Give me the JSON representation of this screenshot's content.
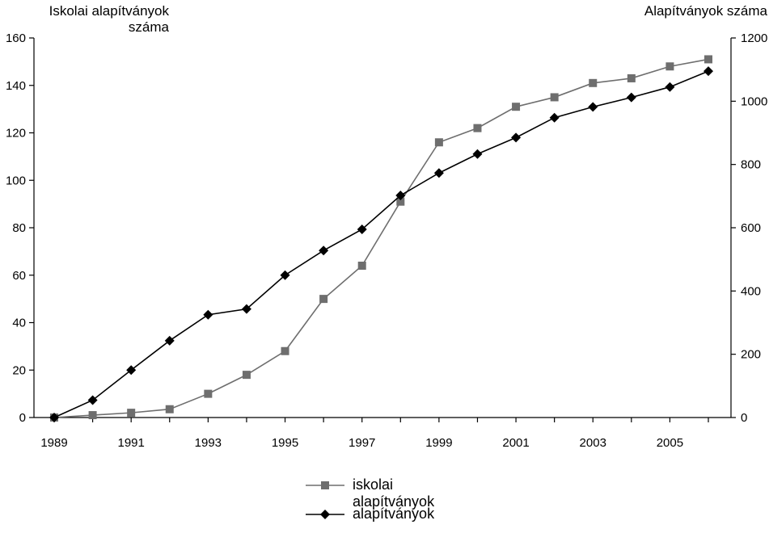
{
  "chart_data": {
    "type": "line",
    "ylabel_left": [
      "Iskolai alapítványok",
      "száma"
    ],
    "ylabel_right": "Alapítványok száma",
    "x": [
      1989,
      1990,
      1991,
      1992,
      1993,
      1994,
      1995,
      1996,
      1997,
      1998,
      1999,
      2000,
      2001,
      2002,
      2003,
      2004,
      2005,
      2006
    ],
    "xticks": [
      "1989",
      "1991",
      "1993",
      "1995",
      "1997",
      "1999",
      "2001",
      "2003",
      "2005"
    ],
    "ylim_left": [
      0,
      160
    ],
    "ylim_right": [
      0,
      1200
    ],
    "yticks_left": [
      "0",
      "20",
      "40",
      "60",
      "80",
      "100",
      "120",
      "140",
      "160"
    ],
    "yticks_right": [
      "0",
      "200",
      "400",
      "600",
      "800",
      "1000",
      "1200"
    ],
    "series": [
      {
        "name": "iskolai alapítványok",
        "axis": "left",
        "marker": "square",
        "color": "#6e6e6e",
        "values": [
          0,
          1,
          2,
          3.5,
          10,
          18,
          28,
          50,
          64,
          91,
          116,
          122,
          131,
          135,
          141,
          143,
          148,
          151
        ]
      },
      {
        "name": "alapítványok",
        "axis": "right",
        "marker": "diamond",
        "color": "#000000",
        "values": [
          0,
          55,
          150,
          243,
          325,
          343,
          450,
          528,
          595,
          702,
          773,
          833,
          885,
          948,
          982,
          1012,
          1045,
          1095
        ]
      }
    ],
    "grid": false,
    "legend_position": "bottom-center"
  }
}
